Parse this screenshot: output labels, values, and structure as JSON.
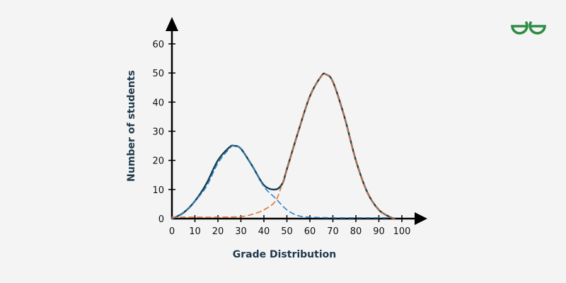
{
  "brand": {
    "logo_icon": "geeksforgeeks-logo-icon",
    "color": "#2f8d46"
  },
  "chart_data": {
    "type": "line",
    "title": "",
    "xlabel": "Grade Distribution",
    "ylabel": "Number of students",
    "xlim": [
      0,
      100
    ],
    "ylim": [
      0,
      60
    ],
    "x_ticks": [
      0,
      10,
      20,
      30,
      40,
      50,
      60,
      70,
      80,
      90,
      100
    ],
    "y_ticks": [
      0,
      10,
      20,
      30,
      40,
      50,
      60
    ],
    "grid": false,
    "legend": "none",
    "series": [
      {
        "style": "solid",
        "color": "#163c4e",
        "x": [
          0,
          5,
          10,
          15,
          20,
          25,
          27,
          30,
          35,
          40,
          45,
          48,
          50,
          55,
          60,
          65,
          67,
          70,
          75,
          80,
          85,
          90,
          95,
          97
        ],
        "y": [
          0,
          2,
          6,
          12,
          20,
          24.5,
          25,
          24,
          18,
          11.5,
          10,
          12,
          17,
          30,
          42,
          49,
          49.5,
          47,
          35,
          20,
          9,
          3,
          0.5,
          0
        ]
      },
      {
        "style": "dashed",
        "color": "#2e86c8",
        "x": [
          0,
          5,
          10,
          15,
          20,
          25,
          27,
          30,
          35,
          40,
          45,
          50,
          55,
          60,
          70,
          80,
          90,
          95
        ],
        "y": [
          0,
          2,
          6,
          11,
          19,
          24,
          25,
          24,
          18,
          11,
          7,
          3,
          1,
          0.5,
          0.3,
          0.3,
          0.3,
          0.3
        ]
      },
      {
        "style": "dashed",
        "color": "#e0733a",
        "x": [
          0,
          10,
          20,
          30,
          35,
          40,
          45,
          48,
          50,
          55,
          60,
          65,
          67,
          70,
          75,
          80,
          85,
          90,
          95,
          97
        ],
        "y": [
          0.5,
          0.5,
          0.5,
          0.7,
          1.5,
          3,
          6,
          12,
          17,
          30,
          42,
          49,
          49.5,
          47,
          35,
          20,
          9,
          3,
          0.5,
          0
        ]
      }
    ]
  }
}
